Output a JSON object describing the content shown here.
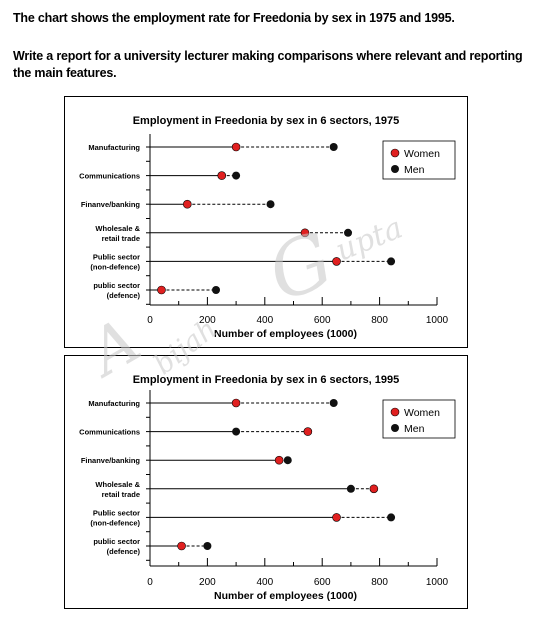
{
  "task": {
    "line1": "The chart shows the employment rate for Freedonia by sex in 1975 and 1995.",
    "line2": "Write a report for a university lecturer making comparisons where relevant and reporting the main features."
  },
  "watermark": {
    "part_a": "A",
    "part_bijah": "bijah",
    "part_g": "G",
    "part_upta": "upta"
  },
  "colors": {
    "women": "#e02020",
    "men": "#111111",
    "stem": "#000000"
  },
  "chart_data": [
    {
      "type": "dot-plot",
      "title": "Employment in Freedonia by sex in 6 sectors, 1975",
      "xlabel": "Number of employees (1000)",
      "ylabel": "",
      "xlim": [
        0,
        1000
      ],
      "xticks": [
        0,
        200,
        400,
        600,
        800,
        1000
      ],
      "categories": [
        "Manufacturing",
        "Communications",
        "Finanve/banking",
        "Wholesale &\nretail trade",
        "Public sector\n(non-defence)",
        "public sector\n(defence)"
      ],
      "series": [
        {
          "name": "Women",
          "values": [
            300,
            250,
            130,
            540,
            650,
            40
          ]
        },
        {
          "name": "Men",
          "values": [
            640,
            300,
            420,
            690,
            840,
            230
          ]
        }
      ],
      "legend": "top-right"
    },
    {
      "type": "dot-plot",
      "title": "Employment in Freedonia by sex in 6 sectors, 1995",
      "xlabel": "Number of employees (1000)",
      "ylabel": "",
      "xlim": [
        0,
        1000
      ],
      "xticks": [
        0,
        200,
        400,
        600,
        800,
        1000
      ],
      "categories": [
        "Manufacturing",
        "Communications",
        "Finanve/banking",
        "Wholesale &\nretail trade",
        "Public sector\n(non-defence)",
        "public sector\n(defence)"
      ],
      "series": [
        {
          "name": "Women",
          "values": [
            300,
            550,
            450,
            780,
            650,
            110
          ]
        },
        {
          "name": "Men",
          "values": [
            640,
            300,
            480,
            700,
            840,
            200
          ]
        }
      ],
      "legend": "top-right"
    }
  ]
}
